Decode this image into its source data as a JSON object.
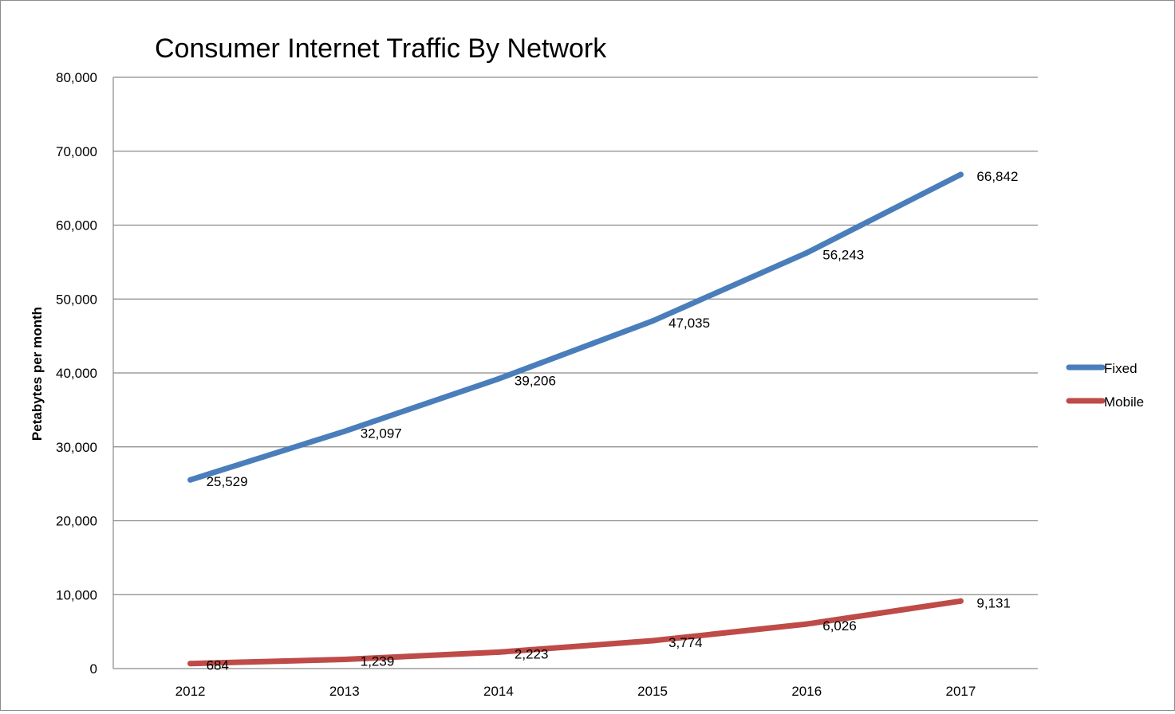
{
  "chart_data": {
    "type": "line",
    "title": "Consumer Internet Traffic By Network",
    "xlabel": "",
    "ylabel": "Petabytes per month",
    "categories": [
      "2012",
      "2013",
      "2014",
      "2015",
      "2016",
      "2017"
    ],
    "ylim": [
      0,
      80000
    ],
    "yticks": [
      0,
      10000,
      20000,
      30000,
      40000,
      50000,
      60000,
      70000,
      80000
    ],
    "ytick_labels": [
      "0",
      "10,000",
      "20,000",
      "30,000",
      "40,000",
      "50,000",
      "60,000",
      "70,000",
      "80,000"
    ],
    "grid": true,
    "legend_position": "right",
    "series": [
      {
        "name": "Fixed",
        "color": "#4a7ebb",
        "values": [
          25529,
          32097,
          39206,
          47035,
          56243,
          66842
        ],
        "labels": [
          "25,529",
          "32,097",
          "39,206",
          "47,035",
          "56,243",
          "66,842"
        ]
      },
      {
        "name": "Mobile",
        "color": "#be4b48",
        "values": [
          684,
          1239,
          2223,
          3774,
          6026,
          9131
        ],
        "labels": [
          "684",
          "1,239",
          "2,223",
          "3,774",
          "6,026",
          "9,131"
        ]
      }
    ]
  }
}
